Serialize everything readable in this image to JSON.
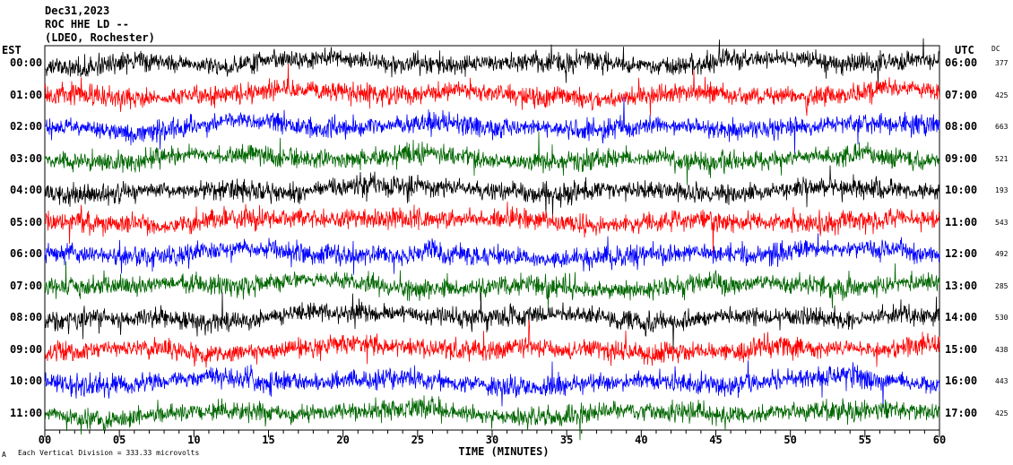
{
  "header": {
    "date": "Dec31,2023",
    "station": "ROC HHE LD --",
    "network": "(LDEO, Rochester)"
  },
  "left_tz": "EST",
  "right_tz": "UTC",
  "dc_header": "DC",
  "footer_note": "Each Vertical Division =  333.33 microvolts",
  "footer_mark": "A",
  "chart_data": {
    "type": "line",
    "title": "",
    "xlabel": "TIME (MINUTES)",
    "xlim": [
      0,
      60
    ],
    "x_ticks": [
      "00",
      "05",
      "10",
      "15",
      "20",
      "25",
      "30",
      "35",
      "40",
      "45",
      "50",
      "55",
      "60"
    ],
    "trace_colors": [
      "#000000",
      "#ff0000",
      "#0000ff",
      "#006600"
    ],
    "rows": [
      {
        "est": "00:00",
        "utc": "06:00",
        "dc": "377"
      },
      {
        "est": "01:00",
        "utc": "07:00",
        "dc": "425"
      },
      {
        "est": "02:00",
        "utc": "08:00",
        "dc": "663"
      },
      {
        "est": "03:00",
        "utc": "09:00",
        "dc": "521"
      },
      {
        "est": "04:00",
        "utc": "10:00",
        "dc": "193"
      },
      {
        "est": "05:00",
        "utc": "11:00",
        "dc": "543"
      },
      {
        "est": "06:00",
        "utc": "12:00",
        "dc": "492"
      },
      {
        "est": "07:00",
        "utc": "13:00",
        "dc": "285"
      },
      {
        "est": "08:00",
        "utc": "14:00",
        "dc": "530"
      },
      {
        "est": "09:00",
        "utc": "15:00",
        "dc": "438"
      },
      {
        "est": "10:00",
        "utc": "16:00",
        "dc": "443"
      },
      {
        "est": "11:00",
        "utc": "17:00",
        "dc": "425"
      }
    ]
  }
}
